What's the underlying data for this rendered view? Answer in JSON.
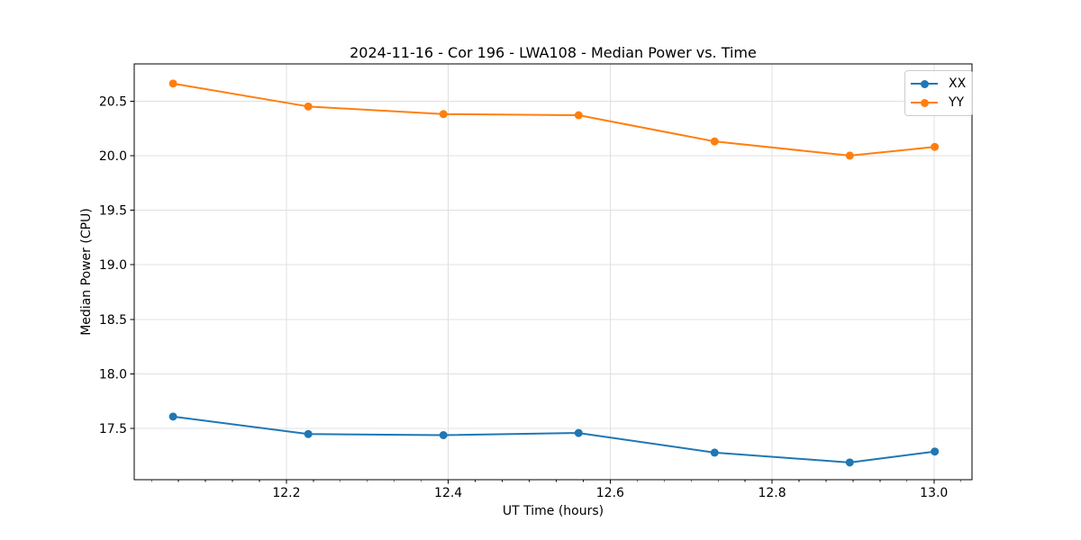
{
  "chart_data": {
    "type": "line",
    "title": "2024-11-16 - Cor 196 - LWA108 - Median Power vs. Time",
    "xlabel": "UT Time (hours)",
    "ylabel": "Median Power (CPU)",
    "xlim": [
      12.012,
      13.047
    ],
    "ylim": [
      17.032,
      20.84
    ],
    "x_ticks": [
      12.2,
      12.4,
      12.6,
      12.8,
      13.0
    ],
    "y_ticks": [
      17.5,
      18.0,
      18.5,
      19.0,
      19.5,
      20.0,
      20.5
    ],
    "x_tick_decimals": 1,
    "y_tick_decimals": 1,
    "x_minor_step": 0.0333333,
    "grid": true,
    "grid_color": "#e0e0e0",
    "axes_bg": "#ffffff",
    "spine_color": "#000000",
    "legend_position": "upper right",
    "marker": "circle",
    "x": [
      12.06,
      12.227,
      12.394,
      12.561,
      12.729,
      12.896,
      13.001
    ],
    "series": [
      {
        "name": "XX",
        "color": "#1f77b4",
        "values": [
          17.61,
          17.45,
          17.44,
          17.46,
          17.28,
          17.19,
          17.29
        ]
      },
      {
        "name": "YY",
        "color": "#ff7f0e",
        "values": [
          20.66,
          20.45,
          20.38,
          20.37,
          20.13,
          20.0,
          20.08
        ]
      }
    ]
  }
}
